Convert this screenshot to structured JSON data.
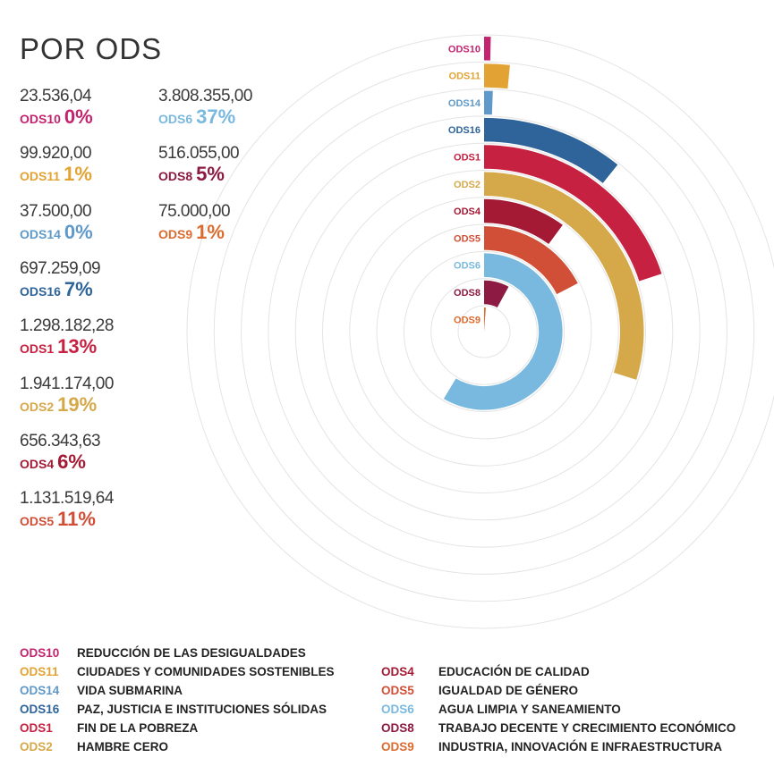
{
  "title": "POR ODS",
  "stats_left": [
    {
      "amount": "23.536,04",
      "code": "ODS10",
      "pct": "0%",
      "color": "#c3246f"
    },
    {
      "amount": "99.920,00",
      "code": "ODS11",
      "pct": "1%",
      "color": "#e2a334"
    },
    {
      "amount": "37.500,00",
      "code": "ODS14",
      "pct": "0%",
      "color": "#5f99c9"
    },
    {
      "amount": "697.259,09",
      "code": "ODS16",
      "pct": "7%",
      "color": "#2e6499"
    },
    {
      "amount": "1.298.182,28",
      "code": "ODS1",
      "pct": "13%",
      "color": "#c72141"
    },
    {
      "amount": "1.941.174,00",
      "code": "ODS2",
      "pct": "19%",
      "color": "#d5a84a"
    },
    {
      "amount": "656.343,63",
      "code": "ODS4",
      "pct": "6%",
      "color": "#a41a35"
    },
    {
      "amount": "1.131.519,64",
      "code": "ODS5",
      "pct": "11%",
      "color": "#d14f37"
    }
  ],
  "stats_right": [
    {
      "amount": "3.808.355,00",
      "code": "ODS6",
      "pct": "37%",
      "color": "#7ab9df"
    },
    {
      "amount": "516.055,00",
      "code": "ODS8",
      "pct": "5%",
      "color": "#8c1a42"
    },
    {
      "amount": "75.000,00",
      "code": "ODS9",
      "pct": "1%",
      "color": "#dc6b2f"
    }
  ],
  "legend_left": [
    {
      "code": "ODS10",
      "name": "REDUCCIÓN DE LAS DESIGUALDADES",
      "color": "#c3246f"
    },
    {
      "code": "ODS11",
      "name": "CIUDADES Y COMUNIDADES SOSTENIBLES",
      "color": "#e2a334"
    },
    {
      "code": "ODS14",
      "name": "VIDA SUBMARINA",
      "color": "#5f99c9"
    },
    {
      "code": "ODS16",
      "name": "PAZ, JUSTICIA E INSTITUCIONES SÓLIDAS",
      "color": "#2e6499"
    },
    {
      "code": "ODS1",
      "name": "FIN DE LA POBREZA",
      "color": "#c72141"
    },
    {
      "code": "ODS2",
      "name": "HAMBRE CERO",
      "color": "#d5a84a"
    }
  ],
  "legend_right": [
    {
      "code": "ODS4",
      "name": "EDUCACIÓN DE CALIDAD",
      "color": "#a41a35"
    },
    {
      "code": "ODS5",
      "name": "IGUALDAD DE GÉNERO",
      "color": "#d14f37"
    },
    {
      "code": "ODS6",
      "name": "AGUA LIMPIA Y SANEAMIENTO",
      "color": "#7ab9df"
    },
    {
      "code": "ODS8",
      "name": "TRABAJO DECENTE Y CRECIMIENTO ECONÓMICO",
      "color": "#8c1a42"
    },
    {
      "code": "ODS9",
      "name": "INDUSTRIA, INNOVACIÓN E INFRAESTRUCTURA",
      "color": "#dc6b2f"
    }
  ],
  "chart_data": {
    "type": "radial-bar",
    "categories": [
      "ODS10",
      "ODS11",
      "ODS14",
      "ODS16",
      "ODS1",
      "ODS2",
      "ODS4",
      "ODS5",
      "ODS6",
      "ODS8",
      "ODS9"
    ],
    "values": [
      23536.04,
      99920.0,
      37500.0,
      697259.09,
      1298182.28,
      1941174.0,
      656343.63,
      1131519.64,
      3808355.0,
      516055.0,
      75000.0
    ],
    "colors": [
      "#c3246f",
      "#e2a334",
      "#5f99c9",
      "#2e6499",
      "#c72141",
      "#d5a84a",
      "#a41a35",
      "#d14f37",
      "#7ab9df",
      "#8c1a42",
      "#dc6b2f"
    ],
    "grid": true,
    "grid_color": "#e4e4e4"
  }
}
